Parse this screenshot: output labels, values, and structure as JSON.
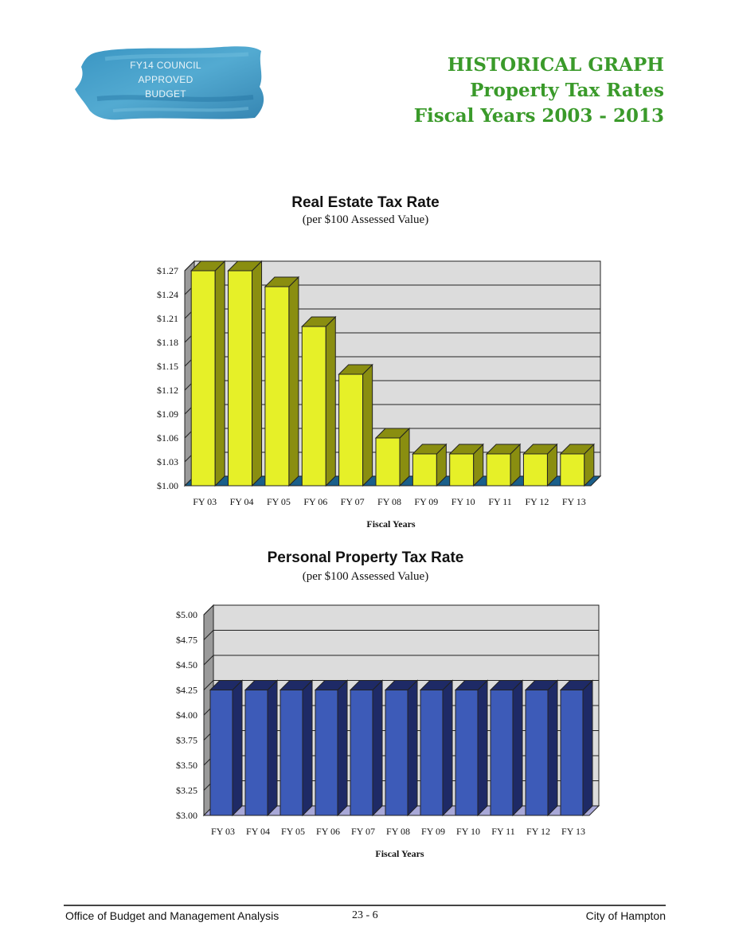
{
  "badge": {
    "text": "FY14 COUNCIL\nAPPROVED\nBUDGET"
  },
  "heading": {
    "line1": "HISTORICAL GRAPH",
    "line2": "Property Tax Rates",
    "line3": "Fiscal Years 2003 - 2013"
  },
  "chart_data": [
    {
      "type": "bar",
      "title": "Real Estate Tax Rate",
      "subtitle": "(per $100 Assessed Value)",
      "xlabel": "Fiscal Years",
      "ylabel": "",
      "categories": [
        "FY 03",
        "FY 04",
        "FY 05",
        "FY 06",
        "FY 07",
        "FY 08",
        "FY 09",
        "FY 10",
        "FY 11",
        "FY 12",
        "FY 13"
      ],
      "values": [
        1.27,
        1.27,
        1.25,
        1.2,
        1.14,
        1.06,
        1.04,
        1.04,
        1.04,
        1.04,
        1.04
      ],
      "ylim": [
        1.0,
        1.27
      ],
      "yticks": [
        "$1.00",
        "$1.03",
        "$1.06",
        "$1.09",
        "$1.12",
        "$1.15",
        "$1.18",
        "$1.21",
        "$1.24",
        "$1.27"
      ],
      "grid": true,
      "legend": false,
      "bar_color": "#e6f028",
      "bar_side_color": "#8a8e10",
      "floor_color": "#1a5f8a"
    },
    {
      "type": "bar",
      "title": "Personal Property Tax Rate",
      "subtitle": "(per $100 Assessed Value)",
      "xlabel": "Fiscal Years",
      "ylabel": "",
      "categories": [
        "FY 03",
        "FY 04",
        "FY 05",
        "FY 06",
        "FY 07",
        "FY 08",
        "FY 09",
        "FY 10",
        "FY 11",
        "FY 12",
        "FY 13"
      ],
      "values": [
        4.25,
        4.25,
        4.25,
        4.25,
        4.25,
        4.25,
        4.25,
        4.25,
        4.25,
        4.25,
        4.25
      ],
      "ylim": [
        3.0,
        5.0
      ],
      "yticks": [
        "$3.00",
        "$3.25",
        "$3.50",
        "$3.75",
        "$4.00",
        "$4.25",
        "$4.50",
        "$4.75",
        "$5.00"
      ],
      "grid": true,
      "legend": false,
      "bar_color": "#3d5bb8",
      "bar_side_color": "#1e2a66",
      "floor_color": "#a8a8d8"
    }
  ],
  "footer": {
    "left": "Office of Budget and Management Analysis",
    "center": "23 - 6",
    "right": "City of Hampton"
  }
}
